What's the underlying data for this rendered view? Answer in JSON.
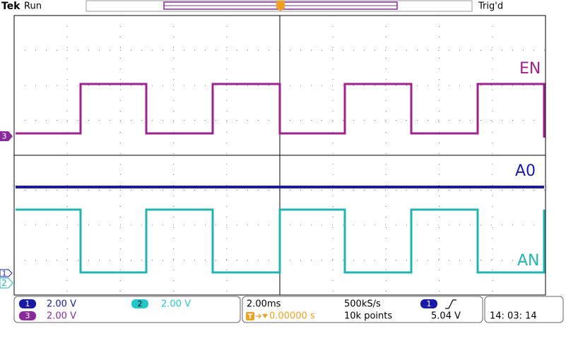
{
  "header": {
    "brand": "Tek",
    "state": "Run",
    "trigger_status": "Trig'd",
    "trigger_marker": "T"
  },
  "channels": [
    {
      "number": "1",
      "label": "A0",
      "scale": "2.00 V"
    },
    {
      "number": "2",
      "label": "AN",
      "scale": "2.00 V"
    },
    {
      "number": "3",
      "label": "EN",
      "scale": "2.00 V"
    }
  ],
  "timebase": {
    "scale": "2.00ms",
    "sample_rate": "500kS/s",
    "record_length": "10k points",
    "trigger_position_marker": "T",
    "trigger_position": "0.00000 s",
    "trigger_source": "1",
    "trigger_level": "5.04 V"
  },
  "clock": "14: 03: 14"
}
